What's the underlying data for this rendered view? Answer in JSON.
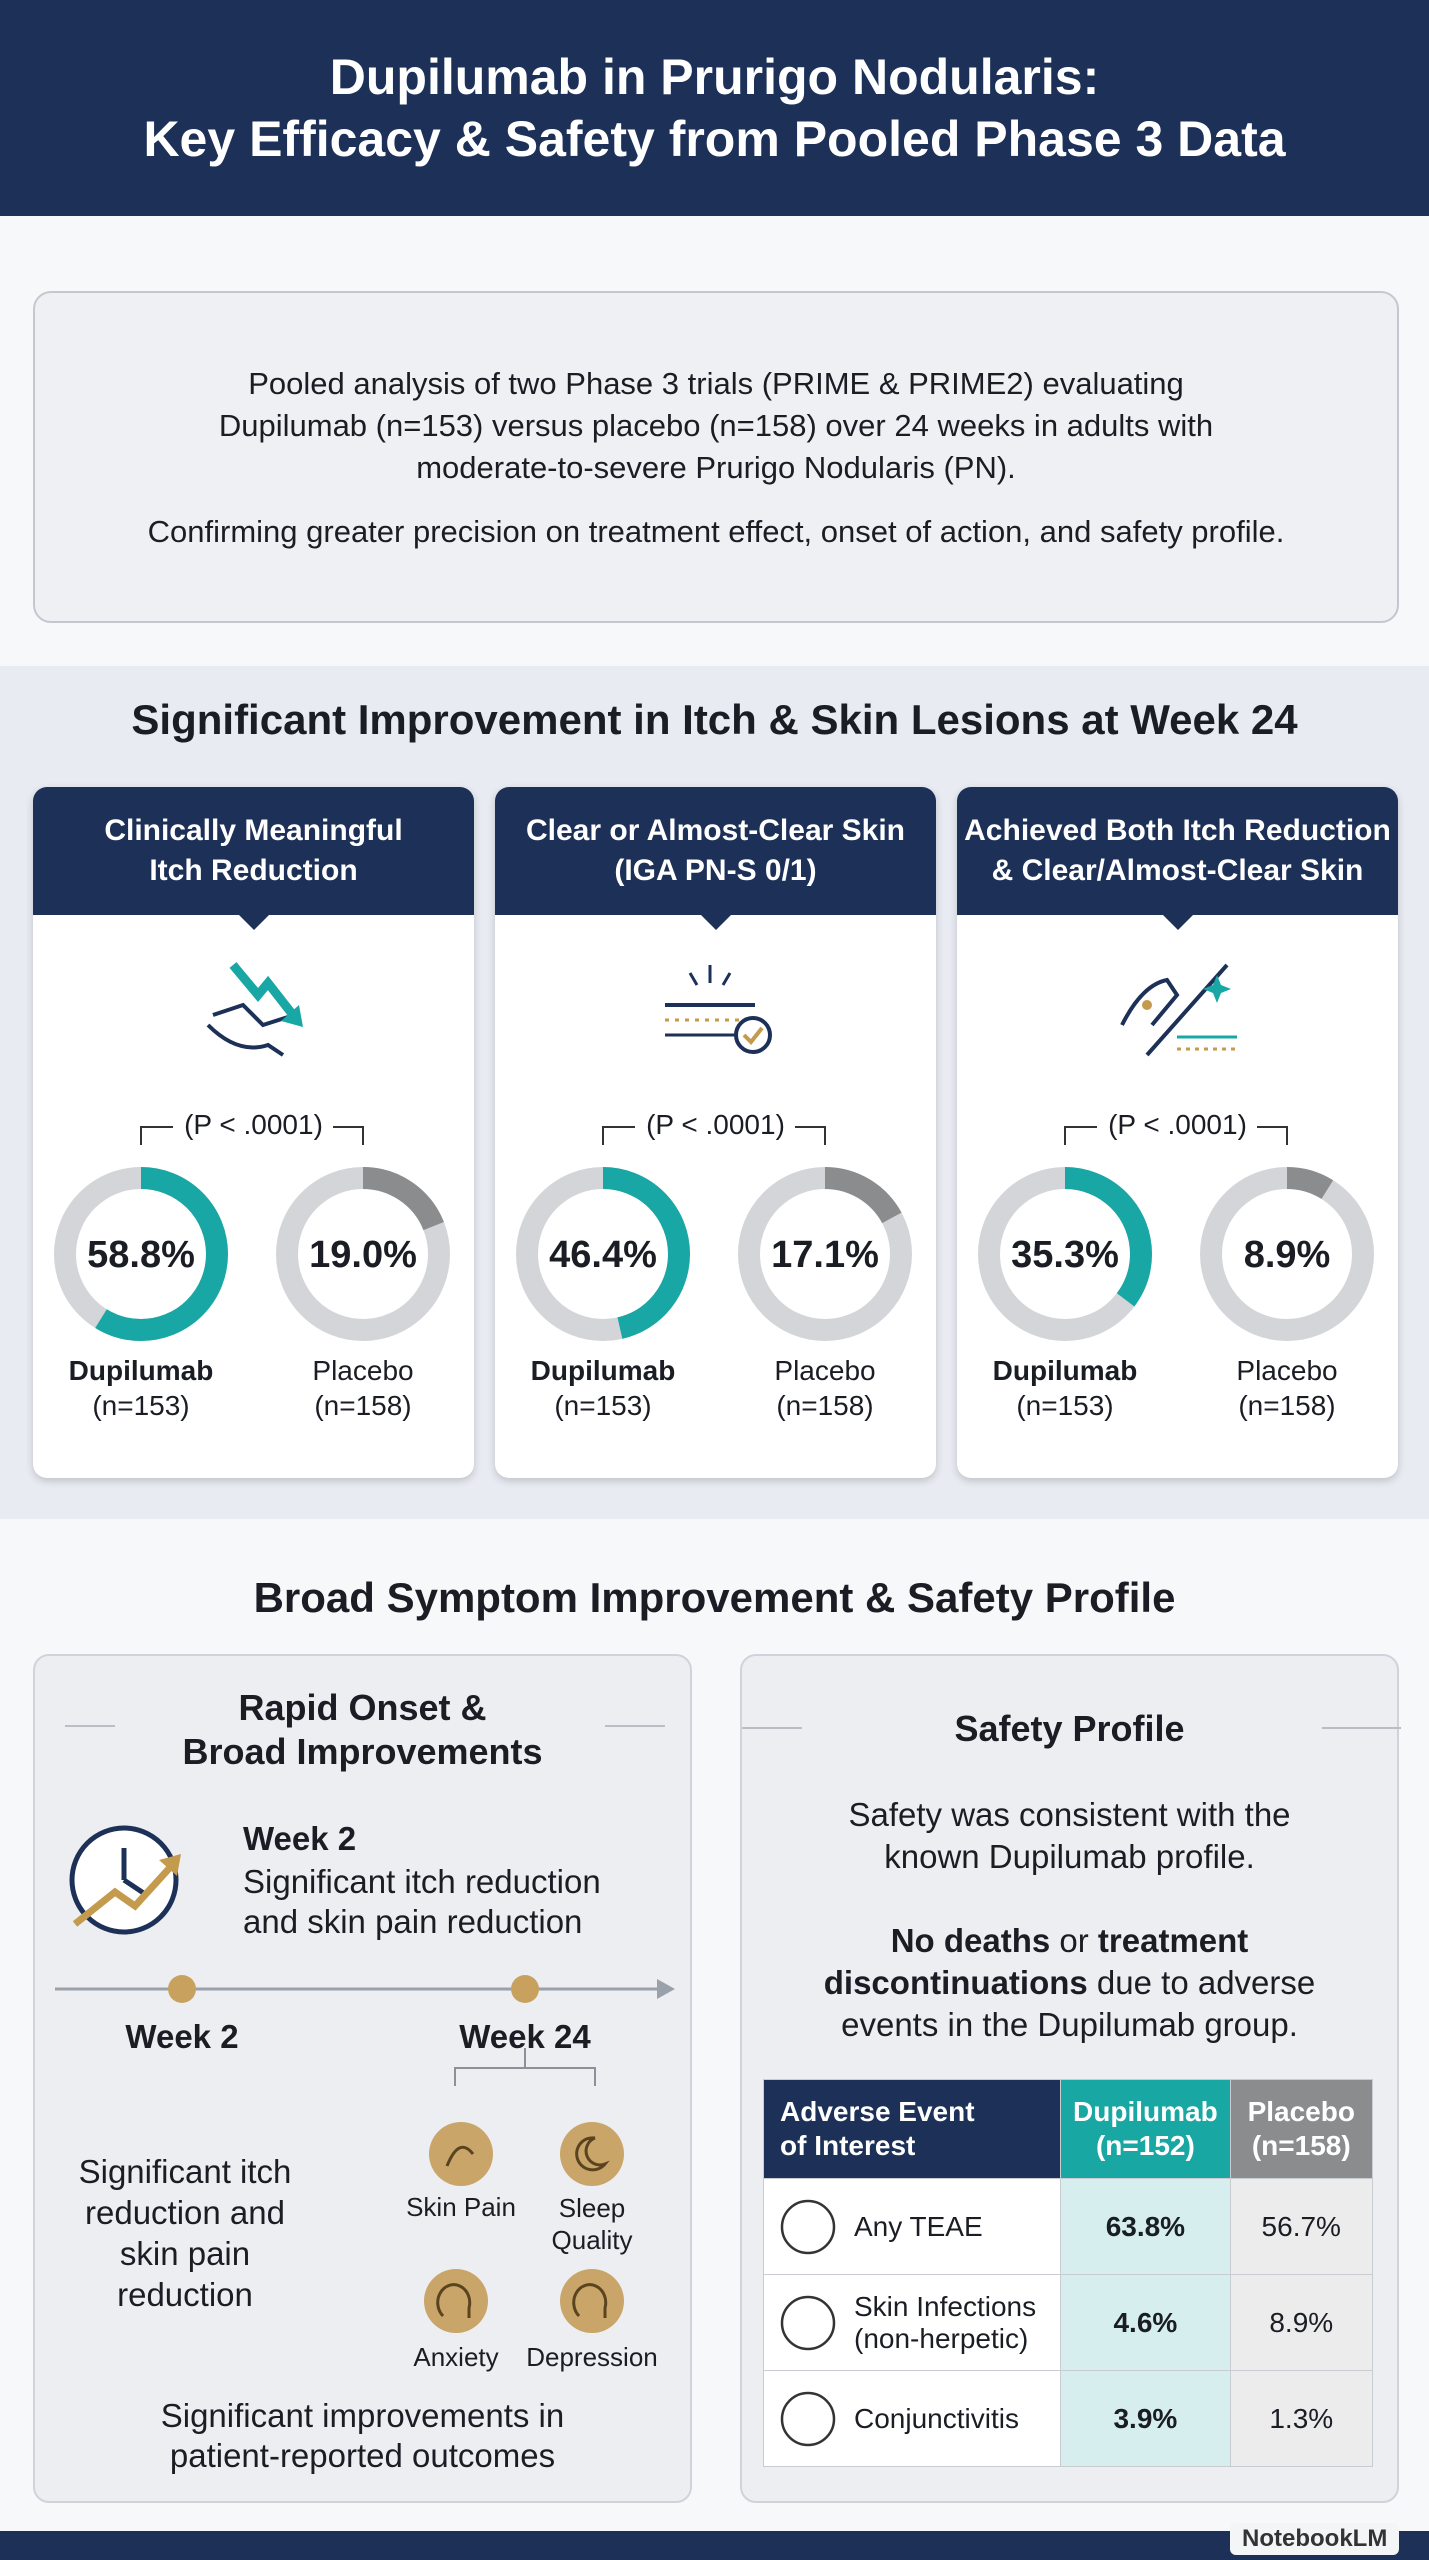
{
  "header": {
    "title_lines": [
      "Dupilumab in Prurigo Nodularis:",
      "Key Efficacy & Safety from Pooled Phase 3 Data"
    ]
  },
  "intro": {
    "lines": [
      "Pooled analysis of two Phase 3 trials (PRIME & PRIME2) evaluating",
      "Dupilumab (n=153) versus placebo (n=158) over 24 weeks in adults with",
      "moderate-to-severe Prurigo Nodularis (PN)."
    ],
    "summary": "Confirming greater precision on treatment effect, onset of action, and safety profile."
  },
  "efficacy": {
    "title": "Significant Improvement in Itch & Skin Lesions at Week 24",
    "cards": [
      {
        "title_lines": [
          "Clinically Meaningful",
          "Itch Reduction"
        ],
        "p_value": "(P < .0001)",
        "arms": [
          {
            "name": "Dupilumab",
            "n": "(n=153)",
            "value": 58.8,
            "value_label": "58.8%",
            "color": "#18a7a4"
          },
          {
            "name": "Placebo",
            "n": "(n=158)",
            "value": 19.0,
            "value_label": "19.0%",
            "color": "#8a8c8e"
          }
        ]
      },
      {
        "title_lines": [
          "Clear or Almost-Clear Skin",
          "(IGA PN-S 0/1)"
        ],
        "p_value": "(P < .0001)",
        "arms": [
          {
            "name": "Dupilumab",
            "n": "(n=153)",
            "value": 46.4,
            "value_label": "46.4%",
            "color": "#18a7a4"
          },
          {
            "name": "Placebo",
            "n": "(n=158)",
            "value": 17.1,
            "value_label": "17.1%",
            "color": "#8a8c8e"
          }
        ]
      },
      {
        "title_lines": [
          "Achieved Both Itch Reduction",
          "& Clear/Almost-Clear Skin"
        ],
        "p_value": "(P < .0001)",
        "arms": [
          {
            "name": "Dupilumab",
            "n": "(n=153)",
            "value": 35.3,
            "value_label": "35.3%",
            "color": "#18a7a4"
          },
          {
            "name": "Placebo",
            "n": "(n=158)",
            "value": 8.9,
            "value_label": "8.9%",
            "color": "#8a8c8e"
          }
        ]
      }
    ]
  },
  "symptoms": {
    "title": "Broad Symptom Improvement & Safety Profile",
    "onset": {
      "title_lines": [
        "Rapid Onset &",
        "Broad Improvements"
      ],
      "highlight_title": "Week 2",
      "highlight_lines": [
        "Significant itch reduction",
        "and skin pain reduction"
      ],
      "timeline": [
        "Week 2",
        "Week 24"
      ],
      "week2_lines": [
        "Significant itch",
        "reduction and",
        "skin pain",
        "reduction"
      ],
      "outcomes": [
        "Skin Pain",
        "Sleep Quality",
        "Anxiety",
        "Depression"
      ],
      "footer_lines": [
        "Significant improvements in",
        "patient-reported outcomes"
      ]
    },
    "safety": {
      "title": "Safety Profile",
      "lines": [
        "Safety was consistent with the",
        "known Dupilumab profile."
      ],
      "statement_parts": [
        "No deaths",
        "or",
        "treatment discontinuations",
        "due to adverse events in the Dupilumab group."
      ],
      "table": {
        "header": [
          [
            "Adverse Event",
            "of Interest"
          ],
          [
            "Dupilumab",
            "(n=152)"
          ],
          [
            "Placebo",
            "(n=158)"
          ]
        ],
        "rows": [
          [
            [
              "Any TEAE"
            ],
            "63.8%",
            "56.7%"
          ],
          [
            [
              "Skin Infections",
              "(non-herpetic)"
            ],
            "4.6%",
            "8.9%"
          ],
          [
            [
              "Conjunctivitis"
            ],
            "3.9%",
            "1.3%"
          ]
        ]
      }
    }
  },
  "footer": {
    "brand": "NotebookLM"
  }
}
